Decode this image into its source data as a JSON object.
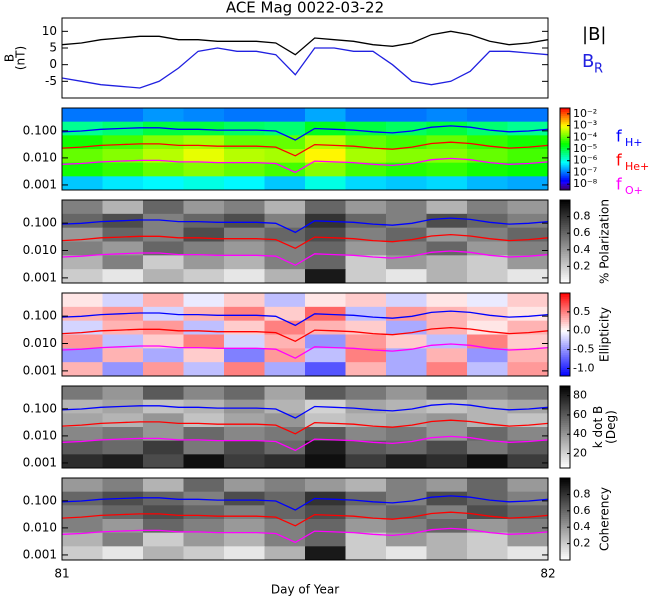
{
  "chart_data": [
    {
      "type": "line",
      "title": "ACE Mag 0022-03-22",
      "ylabel": [
        "B",
        "(nT)"
      ],
      "x": [
        81,
        81.04,
        81.08,
        81.12,
        81.16,
        81.2,
        81.24,
        81.28,
        81.32,
        81.36,
        81.4,
        81.44,
        81.48,
        81.52,
        81.56,
        81.6,
        81.64,
        81.68,
        81.72,
        81.76,
        81.8,
        81.84,
        81.88,
        81.92,
        81.96,
        82
      ],
      "xlim": [
        81,
        82
      ],
      "ylim": [
        -10,
        14
      ],
      "yticks": [
        10,
        5,
        0,
        -5
      ],
      "series": [
        {
          "name": "|B|",
          "color": "#000000",
          "values": [
            6,
            6.5,
            7.5,
            8,
            8.5,
            8.5,
            7.5,
            7.5,
            7,
            7,
            7,
            6.5,
            3,
            8,
            7.5,
            7,
            6,
            5.5,
            6.5,
            9,
            10,
            9,
            7,
            6,
            6.5,
            7.5
          ]
        },
        {
          "name": "B",
          "subscript": "R",
          "color": "#2020e0",
          "values": [
            -4,
            -5,
            -6,
            -6.5,
            -7,
            -5,
            -1,
            4,
            5,
            4,
            4,
            3,
            -3,
            5,
            5,
            4,
            4,
            0,
            -5,
            -6,
            -5,
            -2,
            4,
            4,
            3.5,
            3
          ]
        }
      ]
    },
    {
      "type": "spectrogram",
      "colormap": "rainbow",
      "xlim": [
        81,
        82
      ],
      "ylim": [
        0.00065,
        0.7
      ],
      "log_y": true,
      "yticks": [
        {
          "value": 0.1,
          "label": "0.100"
        },
        {
          "value": 0.01,
          "label": "0.010"
        },
        {
          "value": 0.001,
          "label": "0.001"
        }
      ],
      "clim": [
        -8.5,
        -1.5
      ],
      "cticks": [
        {
          "value": -2,
          "label": "10⁻²"
        },
        {
          "value": -3,
          "label": "10⁻³"
        },
        {
          "value": -4,
          "label": "10⁻⁴"
        },
        {
          "value": -5,
          "label": "10⁻⁵"
        },
        {
          "value": -6,
          "label": "10⁻⁶"
        },
        {
          "value": -7,
          "label": "10⁻⁷"
        },
        {
          "value": -8,
          "label": "10⁻⁸"
        }
      ],
      "z": [
        [
          -7,
          -7,
          -6.8,
          -6.9,
          -7,
          -7,
          -6.7,
          -7,
          -7,
          -6.9,
          -7,
          -7
        ],
        [
          -5.5,
          -5.3,
          -5,
          -5,
          -5.2,
          -5.3,
          -4.8,
          -5,
          -5.2,
          -5,
          -5.3,
          -5.5
        ],
        [
          -4.5,
          -4.2,
          -3.8,
          -3.6,
          -4,
          -4,
          -3.5,
          -4,
          -4.2,
          -4,
          -4.3,
          -4.5
        ],
        [
          -4,
          -3.8,
          -3.5,
          -3.2,
          -3.5,
          -3.6,
          -3,
          -3.6,
          -3.8,
          -3.8,
          -4,
          -4.2
        ],
        [
          -4.5,
          -4.3,
          -4,
          -3.8,
          -4,
          -4.2,
          -3.8,
          -4.2,
          -4.4,
          -4.3,
          -4.5,
          -4.6
        ],
        [
          -6.5,
          -6.3,
          -6.2,
          -6,
          -6.2,
          -6.5,
          -6,
          -6.4,
          -6.5,
          -6.4,
          -6.6,
          -6.7
        ]
      ]
    },
    {
      "type": "spectrogram",
      "colormap": "gray",
      "xlim": [
        81,
        82
      ],
      "ylim": [
        0.00065,
        0.7
      ],
      "log_y": true,
      "yticks": [
        {
          "value": 0.1,
          "label": "0.100"
        },
        {
          "value": 0.01,
          "label": "0.010"
        },
        {
          "value": 0.001,
          "label": "0.001"
        }
      ],
      "clim": [
        0,
        1
      ],
      "cticks": [
        0.2,
        0.4,
        0.6,
        0.8
      ],
      "colorbar_label": [
        "% Polarization"
      ],
      "z": [
        [
          0.5,
          0.3,
          0.6,
          0.4,
          0.5,
          0.3,
          0.6,
          0.4,
          0.5,
          0.3,
          0.5,
          0.4
        ],
        [
          0.6,
          0.7,
          0.5,
          0.6,
          0.7,
          0.5,
          0.8,
          0.6,
          0.5,
          0.7,
          0.6,
          0.5
        ],
        [
          0.4,
          0.6,
          0.5,
          0.7,
          0.5,
          0.6,
          0.7,
          0.5,
          0.6,
          0.4,
          0.5,
          0.6
        ],
        [
          0.5,
          0.4,
          0.6,
          0.5,
          0.4,
          0.5,
          0.6,
          0.4,
          0.5,
          0.6,
          0.4,
          0.5
        ],
        [
          0.3,
          0.5,
          0.2,
          0.4,
          0.3,
          0.5,
          0.6,
          0.2,
          0.4,
          0.3,
          0.2,
          0.4
        ],
        [
          0.2,
          0.1,
          0.3,
          0.2,
          0.1,
          0.3,
          0.9,
          0.2,
          0.1,
          0.3,
          0.2,
          0.1
        ]
      ]
    },
    {
      "type": "spectrogram",
      "colormap": "diverging",
      "xlim": [
        81,
        82
      ],
      "ylim": [
        0.00065,
        0.7
      ],
      "log_y": true,
      "yticks": [
        {
          "value": 0.1,
          "label": "0.100"
        },
        {
          "value": 0.01,
          "label": "0.010"
        },
        {
          "value": 0.001,
          "label": "0.001"
        }
      ],
      "clim": [
        -1.2,
        1.0
      ],
      "cticks": [
        0.5,
        {
          "value": 0,
          "label": "0.0"
        },
        -0.5,
        {
          "value": -1,
          "label": "-1.0"
        }
      ],
      "colorbar_label": [
        "Ellipticity"
      ],
      "z": [
        [
          0.1,
          -0.2,
          0.3,
          -0.1,
          0.2,
          -0.3,
          0.1,
          0.2,
          -0.2,
          0.1,
          -0.1,
          0.2
        ],
        [
          0.3,
          0.4,
          -0.2,
          0.3,
          0.5,
          0.2,
          0.6,
          -0.3,
          0.4,
          0.3,
          0.2,
          0.1
        ],
        [
          -0.2,
          0.3,
          0.4,
          -0.3,
          0.2,
          0.5,
          0.3,
          0.2,
          -0.4,
          0.3,
          0.1,
          0.3
        ],
        [
          0.4,
          -0.3,
          0.2,
          0.5,
          -0.2,
          0.3,
          -0.5,
          0.4,
          0.2,
          -0.3,
          0.5,
          0.2
        ],
        [
          -0.5,
          0.3,
          -0.4,
          0.2,
          -0.6,
          0.4,
          -0.3,
          0.5,
          -0.4,
          0.3,
          -0.5,
          0.3
        ],
        [
          0.3,
          -0.5,
          0.4,
          -0.3,
          0.5,
          -0.4,
          -0.8,
          0.3,
          -0.4,
          0.5,
          -0.3,
          0.4
        ]
      ]
    },
    {
      "type": "spectrogram",
      "colormap": "gray",
      "xlim": [
        81,
        82
      ],
      "ylim": [
        0.00065,
        0.7
      ],
      "log_y": true,
      "yticks": [
        {
          "value": 0.1,
          "label": "0.100"
        },
        {
          "value": 0.01,
          "label": "0.010"
        },
        {
          "value": 0.001,
          "label": "0.001"
        }
      ],
      "clim": [
        5,
        90
      ],
      "cticks": [
        80,
        60,
        40,
        20
      ],
      "colorbar_label": [
        "k dot B",
        "(Deg)"
      ],
      "z": [
        [
          50,
          40,
          60,
          45,
          55,
          35,
          60,
          50,
          40,
          55,
          45,
          50
        ],
        [
          30,
          35,
          25,
          30,
          40,
          30,
          20,
          35,
          30,
          25,
          30,
          35
        ],
        [
          35,
          30,
          40,
          25,
          35,
          40,
          25,
          30,
          35,
          40,
          30,
          25
        ],
        [
          45,
          50,
          40,
          55,
          45,
          50,
          60,
          45,
          50,
          40,
          55,
          45
        ],
        [
          60,
          55,
          70,
          50,
          65,
          55,
          80,
          60,
          55,
          65,
          50,
          60
        ],
        [
          75,
          80,
          65,
          85,
          70,
          75,
          85,
          70,
          80,
          75,
          85,
          70
        ]
      ]
    },
    {
      "type": "spectrogram",
      "colormap": "gray",
      "xlim": [
        81,
        82
      ],
      "ylim": [
        0.00065,
        0.7
      ],
      "log_y": true,
      "yticks": [
        {
          "value": 0.1,
          "label": "0.100"
        },
        {
          "value": 0.01,
          "label": "0.010"
        },
        {
          "value": 0.001,
          "label": "0.001"
        }
      ],
      "clim": [
        0,
        1
      ],
      "cticks": [
        0.8,
        0.6,
        0.4,
        0.2
      ],
      "colorbar_label": [
        "Coherency"
      ],
      "xticks": [
        81,
        82
      ],
      "xlabel": "Day of Year",
      "z": [
        [
          0.4,
          0.5,
          0.3,
          0.6,
          0.4,
          0.5,
          0.4,
          0.3,
          0.5,
          0.4,
          0.6,
          0.4
        ],
        [
          0.6,
          0.7,
          0.6,
          0.5,
          0.7,
          0.6,
          0.8,
          0.6,
          0.5,
          0.7,
          0.6,
          0.5
        ],
        [
          0.5,
          0.6,
          0.7,
          0.6,
          0.5,
          0.6,
          0.7,
          0.5,
          0.6,
          0.5,
          0.7,
          0.6
        ],
        [
          0.5,
          0.4,
          0.6,
          0.5,
          0.4,
          0.5,
          0.6,
          0.4,
          0.5,
          0.6,
          0.4,
          0.5
        ],
        [
          0.3,
          0.5,
          0.2,
          0.4,
          0.3,
          0.5,
          0.6,
          0.2,
          0.4,
          0.3,
          0.2,
          0.4
        ],
        [
          0.2,
          0.1,
          0.3,
          0.2,
          0.1,
          0.3,
          0.9,
          0.2,
          0.1,
          0.3,
          0.2,
          0.1
        ]
      ]
    }
  ],
  "gyrofrequencies": {
    "x": [
      81,
      81.04,
      81.08,
      81.12,
      81.16,
      81.2,
      81.24,
      81.28,
      81.32,
      81.36,
      81.4,
      81.44,
      81.48,
      81.52,
      81.56,
      81.6,
      81.64,
      81.68,
      81.72,
      81.76,
      81.8,
      81.84,
      81.88,
      81.92,
      81.96,
      82
    ],
    "series": [
      {
        "name": "f",
        "subscript": "H+",
        "color": "#0000ff",
        "values": [
          0.092,
          0.099,
          0.114,
          0.122,
          0.13,
          0.13,
          0.114,
          0.114,
          0.107,
          0.107,
          0.107,
          0.099,
          0.046,
          0.122,
          0.114,
          0.107,
          0.092,
          0.084,
          0.099,
          0.137,
          0.153,
          0.137,
          0.107,
          0.092,
          0.099,
          0.114
        ]
      },
      {
        "name": "f",
        "subscript": "He+",
        "color": "#ff0000",
        "values": [
          0.023,
          0.025,
          0.029,
          0.031,
          0.033,
          0.033,
          0.029,
          0.029,
          0.027,
          0.027,
          0.027,
          0.025,
          0.012,
          0.031,
          0.029,
          0.027,
          0.023,
          0.021,
          0.025,
          0.034,
          0.038,
          0.034,
          0.027,
          0.023,
          0.025,
          0.029
        ]
      },
      {
        "name": "f",
        "subscript": "O+",
        "color": "#ff00ff",
        "values": [
          0.0058,
          0.0062,
          0.0071,
          0.0076,
          0.0081,
          0.0081,
          0.0071,
          0.0071,
          0.0067,
          0.0067,
          0.0067,
          0.0062,
          0.0029,
          0.0076,
          0.0071,
          0.0067,
          0.0058,
          0.0053,
          0.0062,
          0.0086,
          0.0096,
          0.0086,
          0.0067,
          0.0058,
          0.0062,
          0.0071
        ]
      }
    ]
  }
}
